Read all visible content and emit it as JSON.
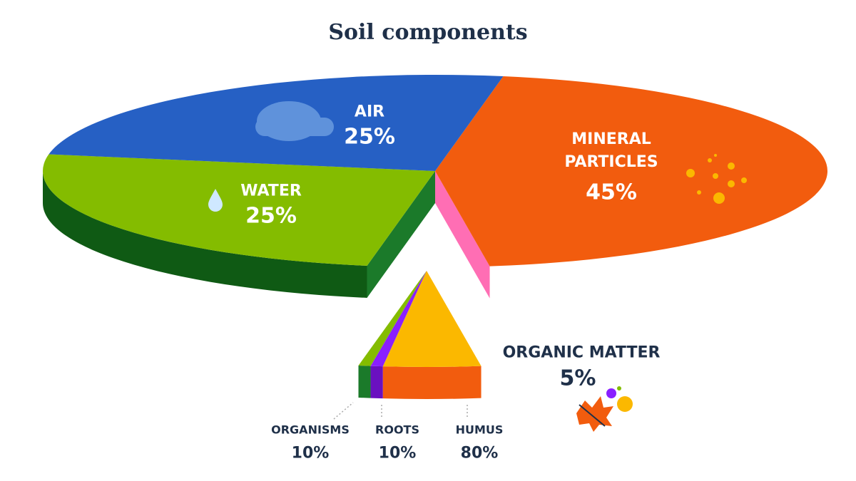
{
  "chart_data": [
    {
      "type": "pie",
      "title": "Soil components",
      "categories": [
        "AIR",
        "WATER",
        "MINERAL PARTICLES",
        "ORGANIC MATTER"
      ],
      "values": [
        25,
        25,
        45,
        5
      ],
      "value_labels": [
        "25%",
        "25%",
        "45%",
        "5%"
      ],
      "colors": [
        "#2660c4",
        "#84bc00",
        "#f25c0e",
        "#fbb800"
      ],
      "side_colors": [
        "#1a4590",
        "#0f5a14",
        "#5b0a99",
        "#f25c0e"
      ],
      "face_colors": [
        "#1a4590",
        "#1b7a2a",
        "#ff6eb4",
        "#f25c0e"
      ]
    },
    {
      "type": "pie",
      "categories": [
        "ORGANISMS",
        "ROOTS",
        "HUMUS"
      ],
      "values": [
        10,
        10,
        80
      ],
      "value_labels": [
        "10%",
        "10%",
        "80%"
      ],
      "colors": [
        "#84bc00",
        "#8a1fff",
        "#fbb800"
      ],
      "side_colors": [
        "#1b7a2a",
        "#6a10c0",
        "#f25c0e"
      ]
    }
  ]
}
